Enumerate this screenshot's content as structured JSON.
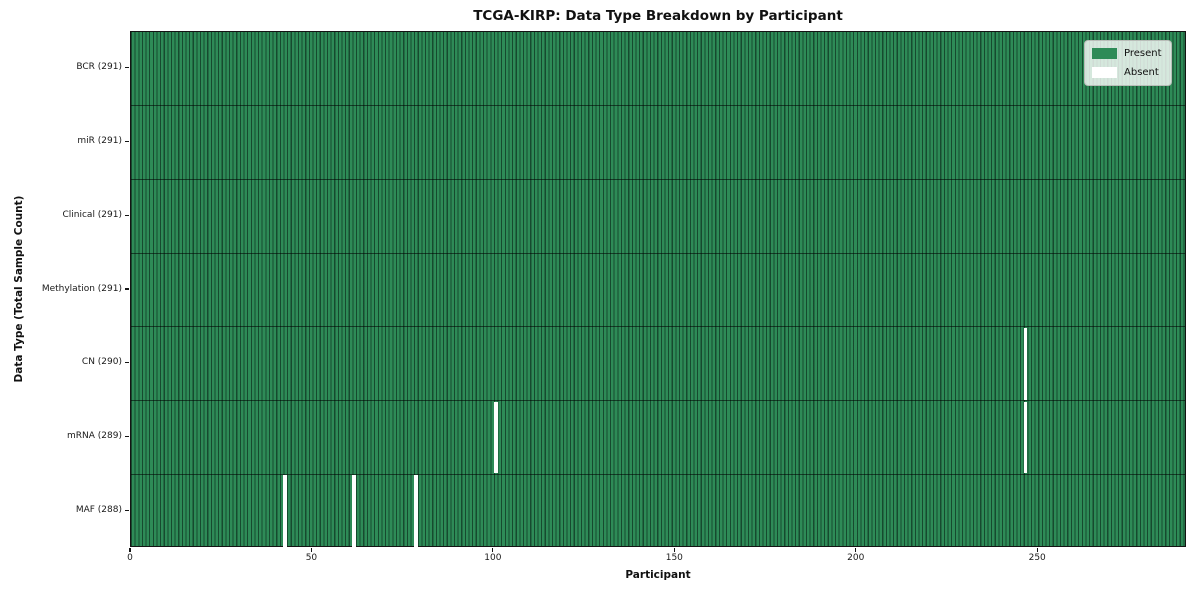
{
  "figure": {
    "title": "TCGA-KIRP: Data Type Breakdown by Participant",
    "xlabel": "Participant",
    "ylabel": "Data Type (Total Sample Count)"
  },
  "legend": {
    "items": [
      {
        "label": "Present",
        "color": "#2e8b57"
      },
      {
        "label": "Absent",
        "color": "#ffffff"
      }
    ]
  },
  "chart_data": {
    "type": "heatmap",
    "title": "TCGA-KIRP: Data Type Breakdown by Participant",
    "xlabel": "Participant",
    "ylabel": "Data Type (Total Sample Count)",
    "n_participants": 291,
    "xlim": [
      0,
      291
    ],
    "x_ticks": [
      0,
      50,
      100,
      150,
      200,
      250
    ],
    "grid": false,
    "legend_position": "upper right",
    "colors": {
      "present": "#2e8b57",
      "absent": "#ffffff",
      "bar_edge": "#1b4e33"
    },
    "rows": [
      {
        "label": "BCR (291)",
        "data_type": "BCR",
        "sample_count": 291,
        "absent_participants": []
      },
      {
        "label": "miR (291)",
        "data_type": "miR",
        "sample_count": 291,
        "absent_participants": []
      },
      {
        "label": "Clinical (291)",
        "data_type": "Clinical",
        "sample_count": 291,
        "absent_participants": []
      },
      {
        "label": "Methylation (291)",
        "data_type": "Methylation",
        "sample_count": 291,
        "absent_participants": []
      },
      {
        "label": "CN (290)",
        "data_type": "CN",
        "sample_count": 290,
        "absent_participants": [
          246
        ]
      },
      {
        "label": "mRNA (289)",
        "data_type": "mRNA",
        "sample_count": 289,
        "absent_participants": [
          100,
          246
        ]
      },
      {
        "label": "MAF (288)",
        "data_type": "MAF",
        "sample_count": 288,
        "absent_participants": [
          42,
          61,
          78
        ]
      }
    ]
  }
}
